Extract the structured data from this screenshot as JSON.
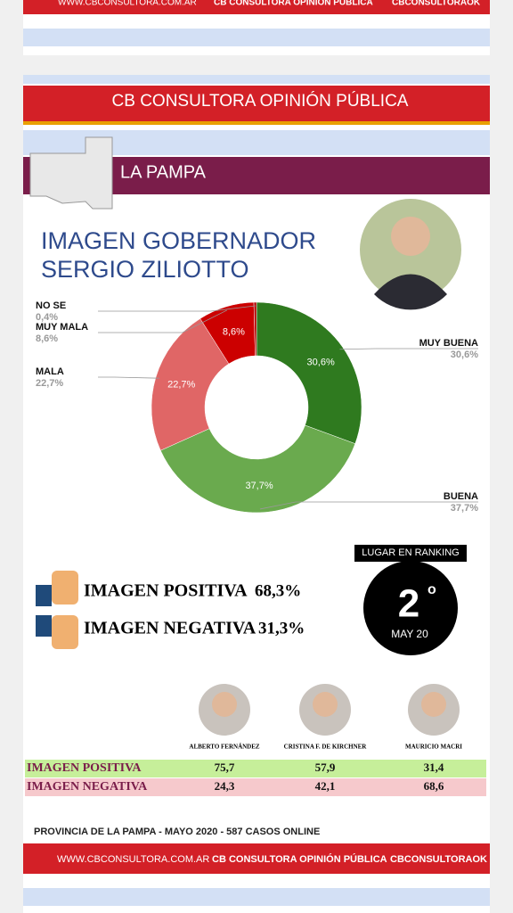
{
  "links": {
    "web": "WWW.CBCONSULTORA.COM.AR",
    "facebook": "CB CONSULTORA OPINIÓN PÚBLICA",
    "twitter": "CBCONSULTORAOK"
  },
  "header": {
    "title": "CB CONSULTORA OPINIÓN PÚBLICA",
    "region": "LA PAMPA",
    "heading_1": "IMAGEN GOBERNADOR",
    "heading_2": "SERGIO ZILIOTTO"
  },
  "chart_data": {
    "type": "pie",
    "categories": [
      "MUY BUENA",
      "BUENA",
      "MALA",
      "MUY MALA",
      "NO SE"
    ],
    "values": [
      30.6,
      37.7,
      22.7,
      8.6,
      0.4
    ],
    "value_labels": [
      "30,6%",
      "37,7%",
      "22,7%",
      "8,6%",
      "0,4%"
    ],
    "colors": [
      "#2f7a1f",
      "#6aaa4e",
      "#e06666",
      "#cc0000",
      "#b00000"
    ]
  },
  "summary": {
    "positive_label": "IMAGEN POSITIVA",
    "positive_value": "68,3%",
    "negative_label": "IMAGEN NEGATIVA",
    "negative_value": "31,3%"
  },
  "ranking": {
    "title": "LUGAR EN RANKING",
    "place": "2",
    "suffix": "o",
    "period": "MAY 20"
  },
  "table": {
    "columns": [
      "ALBERTO FERNÁNDEZ",
      "CRISTINA F. DE KIRCHNER",
      "MAURICIO MACRI"
    ],
    "rows": [
      [
        "IMAGEN POSITIVA",
        "75,7",
        "57,9",
        "31,4"
      ],
      [
        "IMAGEN NEGATIVA",
        "24,3",
        "42,1",
        "68,6"
      ]
    ]
  },
  "footer": {
    "note": "PROVINCIA DE LA PAMPA - MAYO 2020 -  587 CASOS ONLINE"
  }
}
